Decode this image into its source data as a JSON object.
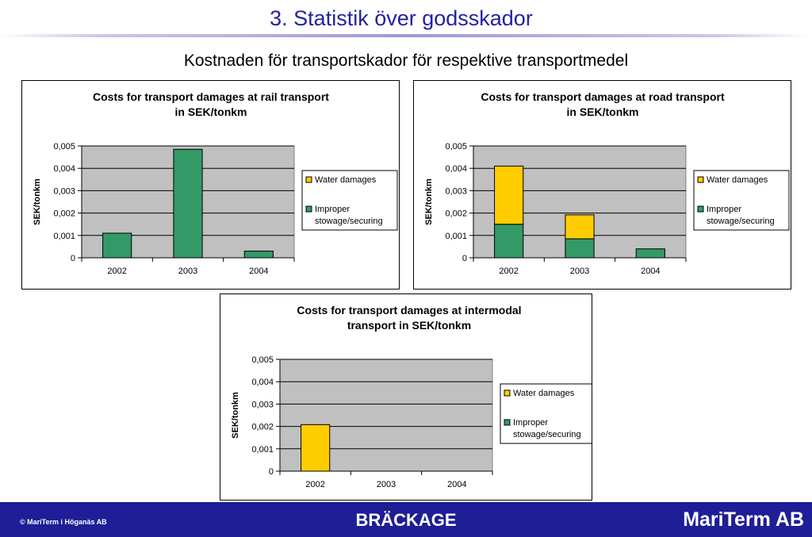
{
  "slide": {
    "title": "3. Statistik över godsskador",
    "subtitle": "Kostnaden för transportskador för respektive transportmedel"
  },
  "footer": {
    "copyright": "© MariTerm i Höganäs AB",
    "center": "BRÄCKAGE",
    "brand": "MariTerm AB"
  },
  "colors": {
    "title": "#2222a0",
    "footer_bg": "#1e1e96",
    "plot_bg": "#c0c0c0",
    "water": "#ffcc00",
    "improper": "#339966"
  },
  "chart_data": [
    {
      "id": "rail",
      "type": "bar",
      "stacked": true,
      "title": [
        "Costs for transport damages at rail transport",
        "in SEK/tonkm"
      ],
      "ylabel": "SEK/tonkm",
      "xlabel": "",
      "categories": [
        "2002",
        "2003",
        "2004"
      ],
      "ylim": [
        0,
        0.005
      ],
      "yticks": [
        "0",
        "0,001",
        "0,002",
        "0,003",
        "0,004",
        "0,005"
      ],
      "grid": true,
      "legend_position": "right",
      "series": [
        {
          "name": "Improper stowage/securing",
          "legend_lines": [
            "Improper",
            "stowage/securing"
          ],
          "color": "#339966",
          "values": [
            0.0011,
            0.00485,
            0.0003
          ]
        },
        {
          "name": "Water damages",
          "legend_lines": [
            "Water damages"
          ],
          "color": "#ffcc00",
          "values": [
            0,
            0,
            0
          ]
        }
      ]
    },
    {
      "id": "road",
      "type": "bar",
      "stacked": true,
      "title": [
        "Costs for transport damages at road transport",
        "in SEK/tonkm"
      ],
      "ylabel": "SEK/tonkm",
      "xlabel": "",
      "categories": [
        "2002",
        "2003",
        "2004"
      ],
      "ylim": [
        0,
        0.005
      ],
      "yticks": [
        "0",
        "0,001",
        "0,002",
        "0,003",
        "0,004",
        "0,005"
      ],
      "grid": true,
      "legend_position": "right",
      "series": [
        {
          "name": "Improper stowage/securing",
          "legend_lines": [
            "Improper",
            "stowage/securing"
          ],
          "color": "#339966",
          "values": [
            0.0015,
            0.00085,
            0.0004
          ]
        },
        {
          "name": "Water damages",
          "legend_lines": [
            "Water damages"
          ],
          "color": "#ffcc00",
          "values": [
            0.0026,
            0.00107,
            0
          ]
        }
      ]
    },
    {
      "id": "intermodal",
      "type": "bar",
      "stacked": true,
      "title": [
        "Costs for transport damages at intermodal",
        "transport in SEK/tonkm"
      ],
      "ylabel": "SEK/tonkm",
      "xlabel": "",
      "categories": [
        "2002",
        "2003",
        "2004"
      ],
      "ylim": [
        0,
        0.005
      ],
      "yticks": [
        "0",
        "0,001",
        "0,002",
        "0,003",
        "0,004",
        "0,005"
      ],
      "grid": true,
      "legend_position": "right",
      "series": [
        {
          "name": "Improper stowage/securing",
          "legend_lines": [
            "Improper",
            "stowage/securing"
          ],
          "color": "#339966",
          "values": [
            0,
            0,
            0
          ]
        },
        {
          "name": "Water damages",
          "legend_lines": [
            "Water damages"
          ],
          "color": "#ffcc00",
          "values": [
            0.00208,
            0,
            0
          ]
        }
      ]
    }
  ]
}
